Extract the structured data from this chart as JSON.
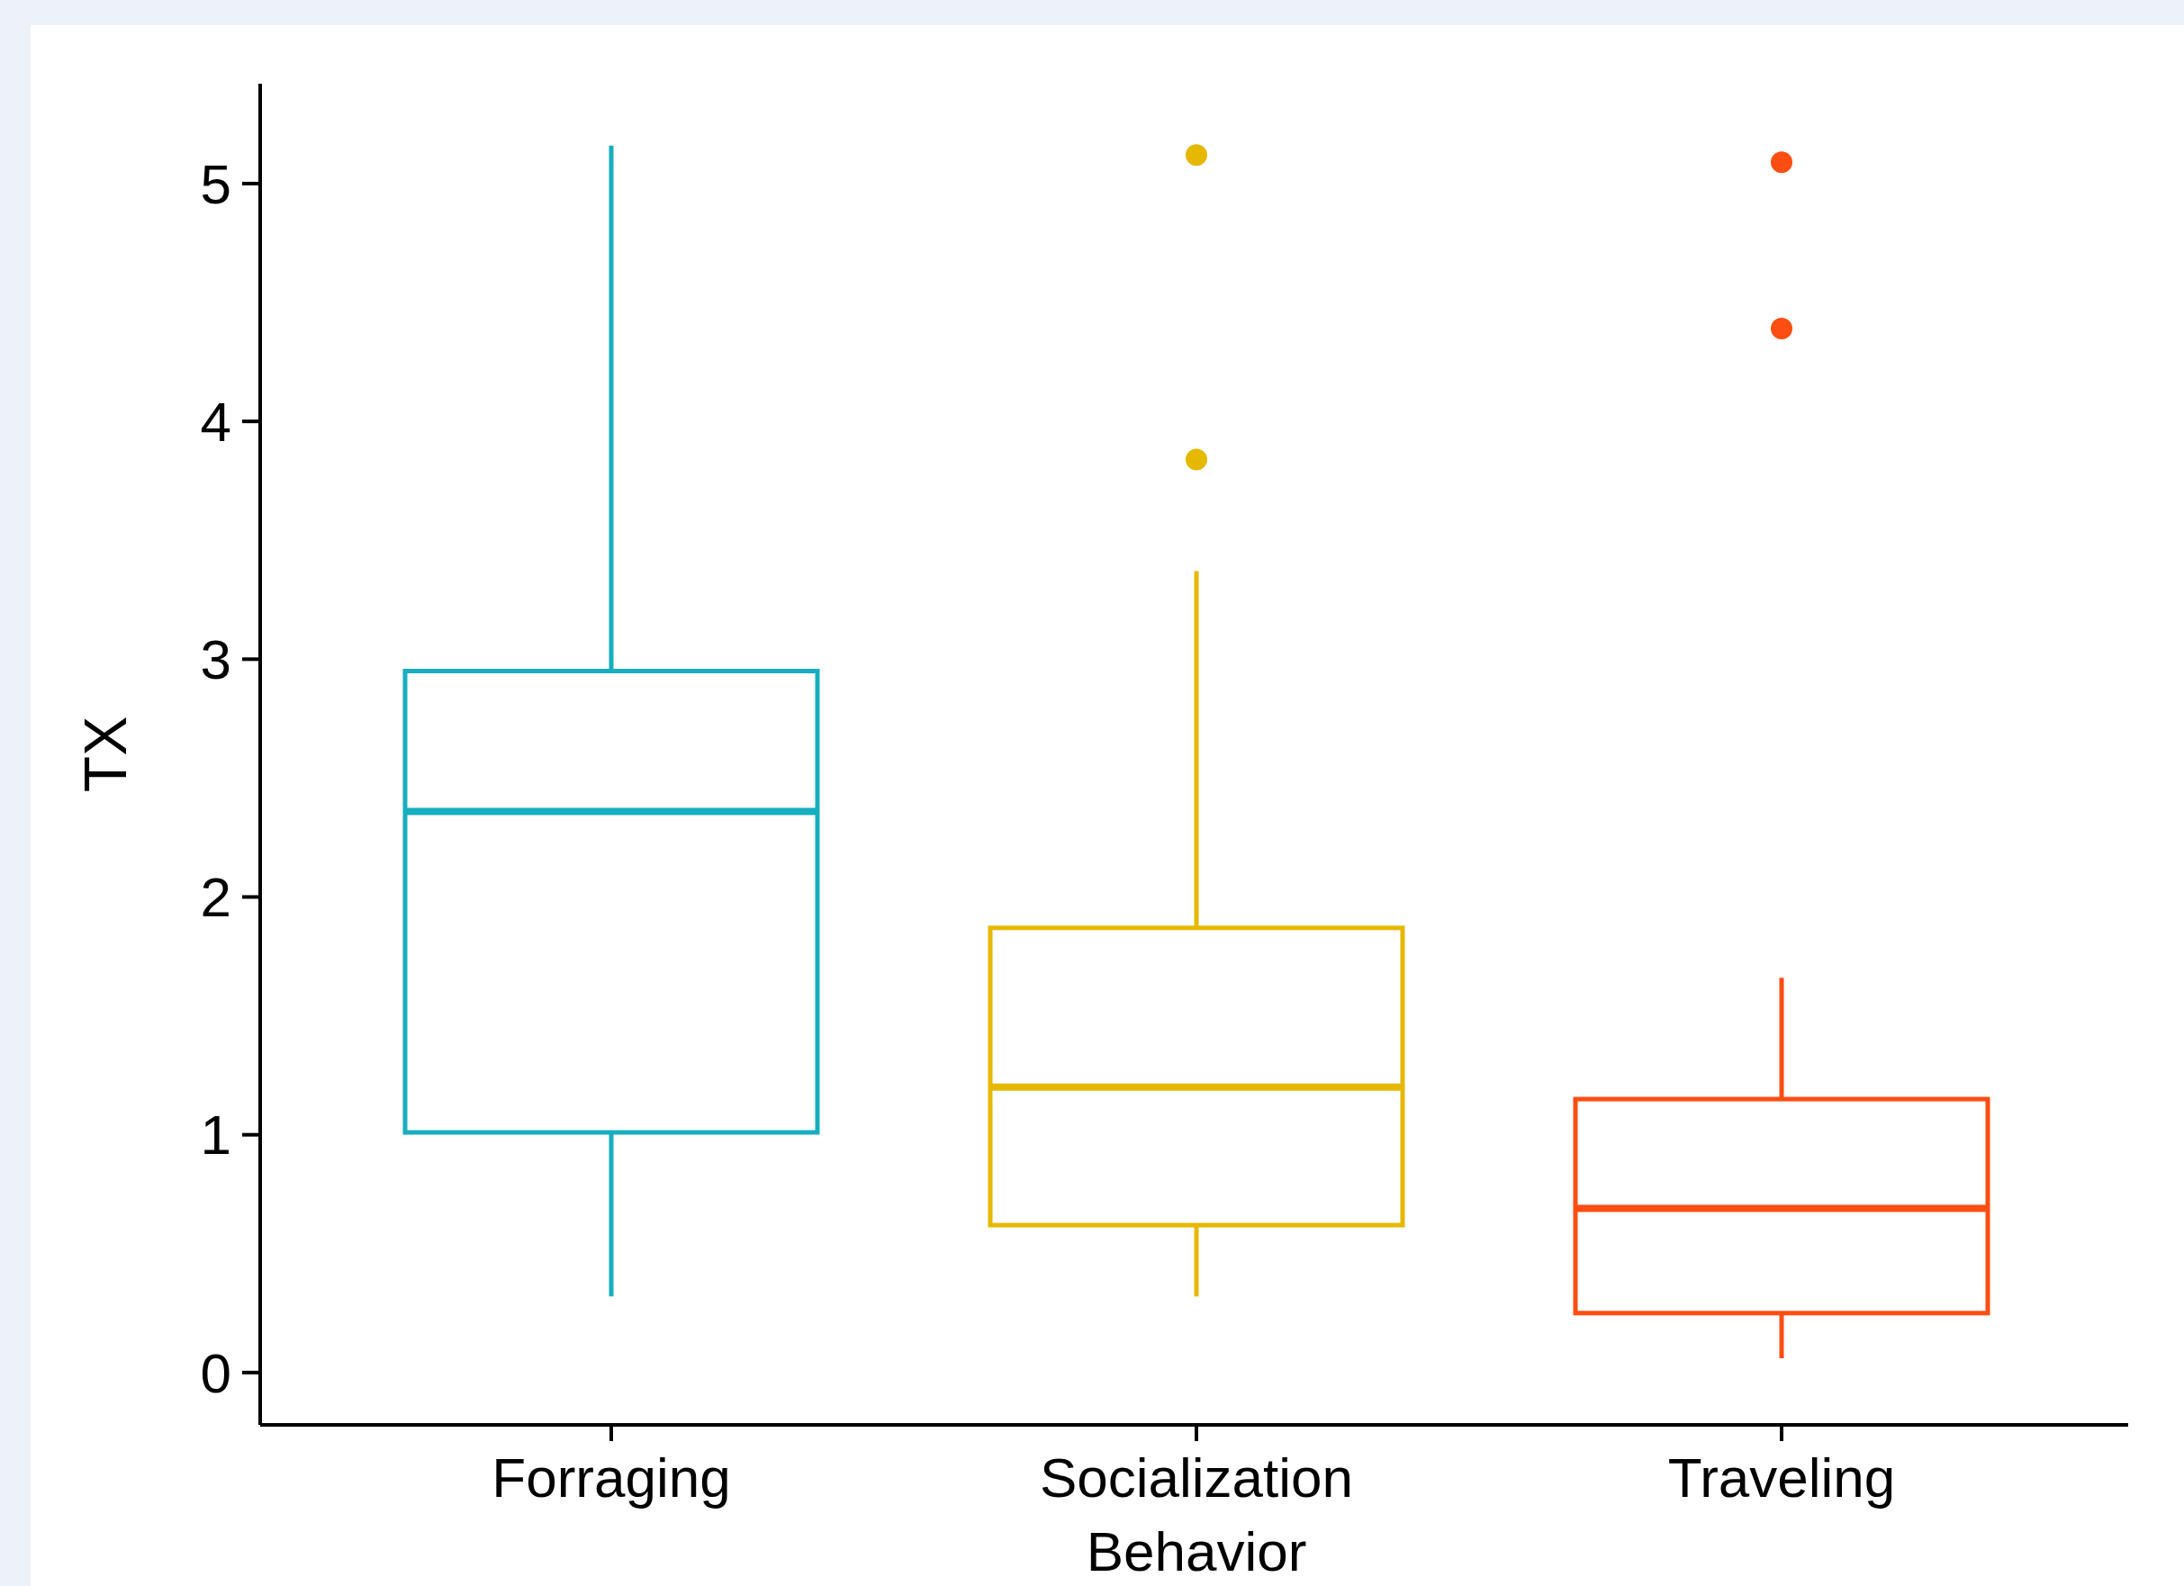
{
  "chart_data": {
    "type": "box",
    "ylabel": "TX",
    "categories": [
      "Forraging",
      "Socialization Behavior",
      "Traveling"
    ],
    "colors": [
      "#17aebf",
      "#e6b800",
      "#fc4e12"
    ],
    "boxes": [
      {
        "low": 0.32,
        "q1": 1.01,
        "median": 2.36,
        "q3": 2.95,
        "high": 5.16
      },
      {
        "low": 0.32,
        "q1": 0.62,
        "median": 1.2,
        "q3": 1.87,
        "high": 3.37,
        "outliers": [
          3.84,
          5.12
        ]
      },
      {
        "low": 0.06,
        "q1": 0.25,
        "median": 0.69,
        "q3": 1.15,
        "high": 1.66,
        "outliers": [
          4.39,
          5.09
        ]
      }
    ],
    "ylim": [
      -0.22,
      5.42
    ],
    "yticks": [
      0,
      1,
      2,
      3,
      4,
      5
    ]
  }
}
